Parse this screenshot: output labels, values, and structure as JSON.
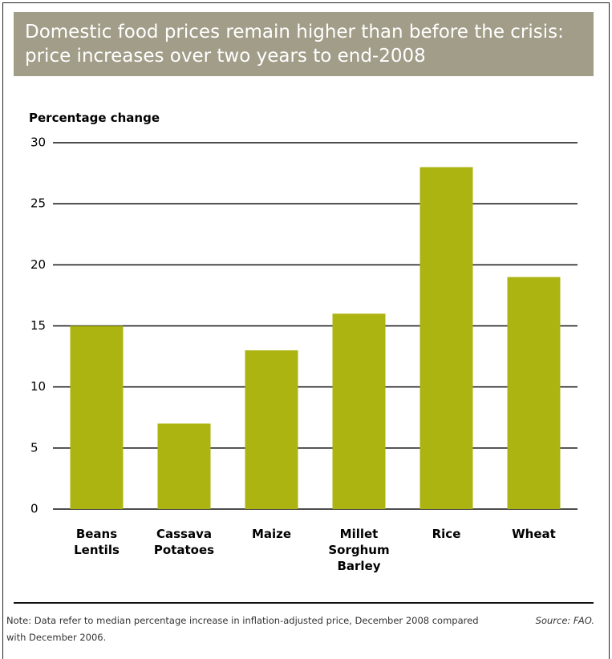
{
  "chart_data": {
    "type": "bar",
    "title": "Domestic food prices remain higher than before the crisis: price increases over two years to end-2008",
    "y_label": "Percentage change",
    "categories": [
      "Beans\nLentils",
      "Cassava\nPotatoes",
      "Maize",
      "Millet\nSorghum\nBarley",
      "Rice",
      "Wheat"
    ],
    "values": [
      15,
      7,
      13,
      16,
      28,
      19
    ],
    "color": "#abb410",
    "ylim": [
      0,
      30
    ],
    "yticks": [
      0,
      5,
      10,
      15,
      20,
      25,
      30
    ],
    "grid": true,
    "note": "Note: Data refer to median percentage increase in inflation-adjusted price, December 2008 compared with December 2006.",
    "source": "Source: FAO."
  }
}
